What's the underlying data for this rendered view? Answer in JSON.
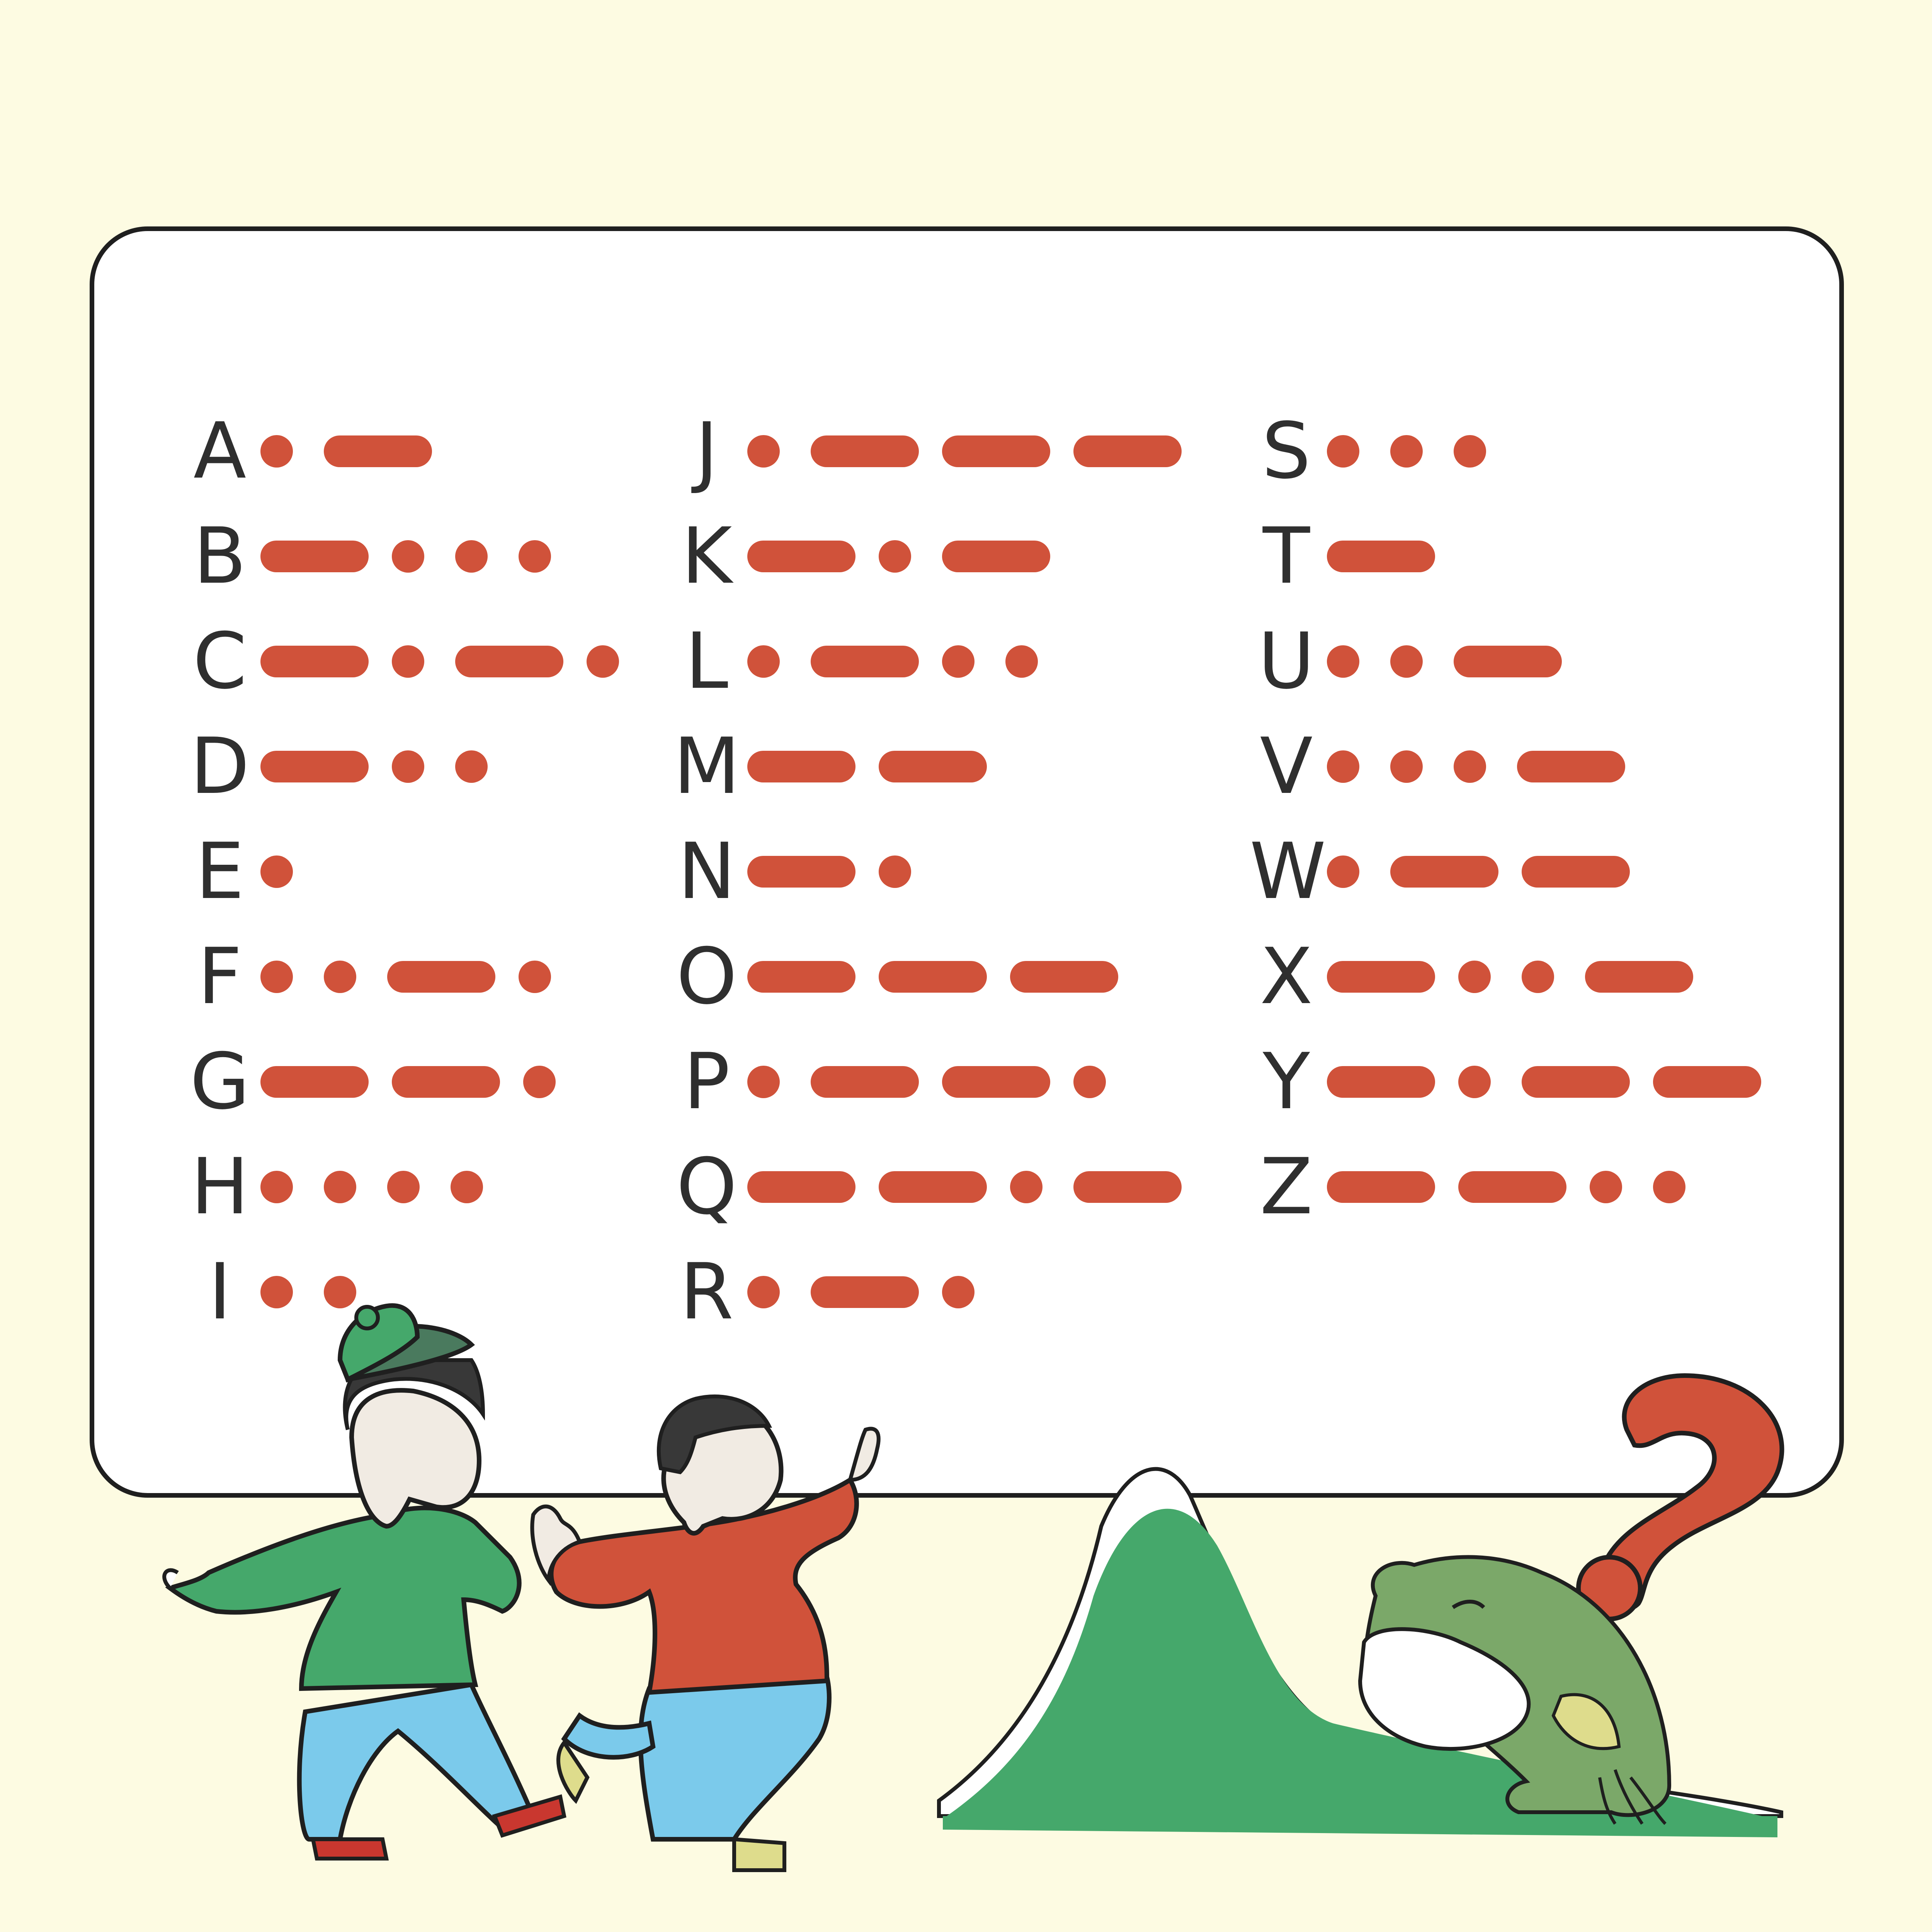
{
  "background_color": "#fdfbe2",
  "code_color": "#d0523a",
  "morse": [
    {
      "letter": "A",
      "code": ".-"
    },
    {
      "letter": "B",
      "code": "-..."
    },
    {
      "letter": "C",
      "code": "-.-."
    },
    {
      "letter": "D",
      "code": "-.."
    },
    {
      "letter": "E",
      "code": "."
    },
    {
      "letter": "F",
      "code": "..-."
    },
    {
      "letter": "G",
      "code": "--."
    },
    {
      "letter": "H",
      "code": "...."
    },
    {
      "letter": "I",
      "code": ".."
    },
    {
      "letter": "J",
      "code": ".---"
    },
    {
      "letter": "K",
      "code": "-.-"
    },
    {
      "letter": "L",
      "code": ".-.."
    },
    {
      "letter": "M",
      "code": "--"
    },
    {
      "letter": "N",
      "code": "-."
    },
    {
      "letter": "O",
      "code": "---"
    },
    {
      "letter": "P",
      "code": ".--."
    },
    {
      "letter": "Q",
      "code": "--.-"
    },
    {
      "letter": "R",
      "code": ".-."
    },
    {
      "letter": "S",
      "code": "..."
    },
    {
      "letter": "T",
      "code": "-"
    },
    {
      "letter": "U",
      "code": "..-"
    },
    {
      "letter": "V",
      "code": "...-"
    },
    {
      "letter": "W",
      "code": ".--"
    },
    {
      "letter": "X",
      "code": "-..-"
    },
    {
      "letter": "Y",
      "code": "-.--"
    },
    {
      "letter": "Z",
      "code": "--.."
    }
  ],
  "illustration": {
    "icons": [
      "boy-green-cap-icon",
      "boy-red-shirt-icon",
      "green-hill-icon",
      "frog-icon",
      "question-mark-icon"
    ]
  }
}
